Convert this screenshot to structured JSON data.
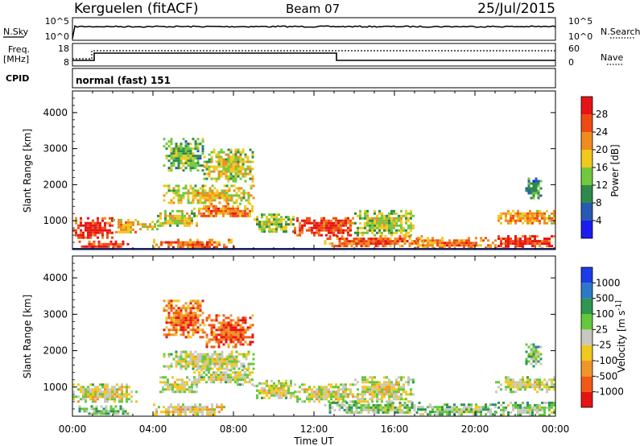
{
  "header": {
    "station": "Kerguelen (fitACF)",
    "beam": "Beam 07",
    "date": "25/Jul/2015"
  },
  "noise_panel": {
    "left_label": "N.Sky",
    "right_label": "N.Search",
    "left_ticks": [
      "10^5",
      "10^0"
    ],
    "right_ticks": [
      "10^5",
      "10^0"
    ]
  },
  "freq_panel": {
    "left_label_1": "Freq.",
    "left_label_2": "[MHz]",
    "right_label": "Nave",
    "left_ticks": [
      "18",
      "8"
    ],
    "right_ticks": [
      "60",
      "0"
    ]
  },
  "cpid": {
    "label": "CPID",
    "mode": "normal (fast) 151"
  },
  "chart_data": [
    {
      "type": "heatmap",
      "name": "Power",
      "ylabel": "Slant Range [km]",
      "ylim": [
        200,
        4600
      ],
      "y_ticks": [
        "1000",
        "2000",
        "3000",
        "4000"
      ],
      "colorbar_label": "Power [dB]",
      "colorbar_ticks": [
        "4",
        "8",
        "12",
        "16",
        "20",
        "24",
        "28"
      ],
      "colors": [
        "#1c1cf0",
        "#285ab4",
        "#2e8a4a",
        "#72c83c",
        "#f0c81e",
        "#f08c1e",
        "#f04a14",
        "#e61414"
      ],
      "regions": [
        {
          "t": [
            0.0,
            2.0
          ],
          "range": [
            500,
            1100
          ],
          "level": 0.9
        },
        {
          "t": [
            2.0,
            3.2
          ],
          "range": [
            650,
            1050
          ],
          "level": 0.6
        },
        {
          "t": [
            3.2,
            4.2
          ],
          "range": [
            750,
            1000
          ],
          "level": 0.55
        },
        {
          "t": [
            0.3,
            2.8
          ],
          "range": [
            250,
            450
          ],
          "level": 0.85
        },
        {
          "t": [
            4.0,
            8.0
          ],
          "range": [
            250,
            500
          ],
          "level": 0.75
        },
        {
          "t": [
            4.2,
            6.2
          ],
          "range": [
            850,
            1300
          ],
          "level": 0.5
        },
        {
          "t": [
            6.0,
            9.0
          ],
          "range": [
            1100,
            1500
          ],
          "level": 0.7
        },
        {
          "t": [
            4.5,
            9.0
          ],
          "range": [
            1500,
            2000
          ],
          "level": 0.55
        },
        {
          "t": [
            4.5,
            6.5
          ],
          "range": [
            2400,
            3300
          ],
          "level": 0.4
        },
        {
          "t": [
            6.5,
            9.0
          ],
          "range": [
            2100,
            3000
          ],
          "level": 0.5
        },
        {
          "t": [
            9.0,
            11.0
          ],
          "range": [
            700,
            1200
          ],
          "level": 0.45
        },
        {
          "t": [
            11.0,
            14.0
          ],
          "range": [
            600,
            1100
          ],
          "level": 0.85
        },
        {
          "t": [
            12.5,
            17.5
          ],
          "range": [
            300,
            600
          ],
          "level": 0.75
        },
        {
          "t": [
            14.0,
            17.0
          ],
          "range": [
            600,
            1300
          ],
          "level": 0.45
        },
        {
          "t": [
            17.0,
            21.0
          ],
          "range": [
            250,
            550
          ],
          "level": 0.7
        },
        {
          "t": [
            21.0,
            24.0
          ],
          "range": [
            250,
            600
          ],
          "level": 0.85
        },
        {
          "t": [
            21.0,
            24.0
          ],
          "range": [
            900,
            1300
          ],
          "level": 0.65
        },
        {
          "t": [
            22.5,
            23.3
          ],
          "range": [
            1600,
            2200
          ],
          "level": 0.3
        }
      ]
    },
    {
      "type": "heatmap",
      "name": "Velocity",
      "ylabel": "Slant Range [km]",
      "ylim": [
        200,
        4600
      ],
      "y_ticks": [
        "1000",
        "2000",
        "3000",
        "4000"
      ],
      "colorbar_label": "Velocity [m s^-1]",
      "colorbar_ticks": [
        "1000",
        "500",
        "100",
        "25",
        "-25",
        "-100",
        "-500",
        "-1000"
      ],
      "colors": [
        "#1c3ce6",
        "#2d78c8",
        "#2e9650",
        "#64c83c",
        "#c8c8c0",
        "#f0c81e",
        "#f09628",
        "#f05a14",
        "#e61414"
      ],
      "regions": [
        {
          "t": [
            0.0,
            3.2
          ],
          "range": [
            600,
            1100
          ],
          "level": 0.52
        },
        {
          "t": [
            0.3,
            2.8
          ],
          "range": [
            250,
            500
          ],
          "level": 0.35
        },
        {
          "t": [
            4.0,
            7.5
          ],
          "range": [
            250,
            550
          ],
          "level": 0.6
        },
        {
          "t": [
            4.2,
            6.2
          ],
          "range": [
            850,
            1300
          ],
          "level": 0.5
        },
        {
          "t": [
            6.0,
            9.0
          ],
          "range": [
            1100,
            1500
          ],
          "level": 0.5
        },
        {
          "t": [
            4.5,
            9.0
          ],
          "range": [
            1500,
            2000
          ],
          "level": 0.5
        },
        {
          "t": [
            4.5,
            6.5
          ],
          "range": [
            2400,
            3400
          ],
          "level": 0.78
        },
        {
          "t": [
            6.5,
            9.0
          ],
          "range": [
            2100,
            3000
          ],
          "level": 0.82
        },
        {
          "t": [
            9.0,
            11.0
          ],
          "range": [
            700,
            1200
          ],
          "level": 0.5
        },
        {
          "t": [
            11.0,
            14.0
          ],
          "range": [
            600,
            1100
          ],
          "level": 0.52
        },
        {
          "t": [
            12.5,
            17.5
          ],
          "range": [
            300,
            600
          ],
          "level": 0.4
        },
        {
          "t": [
            14.0,
            17.0
          ],
          "range": [
            600,
            1300
          ],
          "level": 0.5
        },
        {
          "t": [
            17.0,
            21.0
          ],
          "range": [
            250,
            550
          ],
          "level": 0.4
        },
        {
          "t": [
            21.0,
            24.0
          ],
          "range": [
            250,
            600
          ],
          "level": 0.42
        },
        {
          "t": [
            21.0,
            24.0
          ],
          "range": [
            900,
            1300
          ],
          "level": 0.5
        },
        {
          "t": [
            22.5,
            23.3
          ],
          "range": [
            1600,
            2200
          ],
          "level": 0.38
        }
      ]
    }
  ],
  "x_axis": {
    "label": "Time UT",
    "ticks": [
      "00:00",
      "04:00",
      "08:00",
      "12:00",
      "16:00",
      "20:00",
      "00:00"
    ]
  }
}
